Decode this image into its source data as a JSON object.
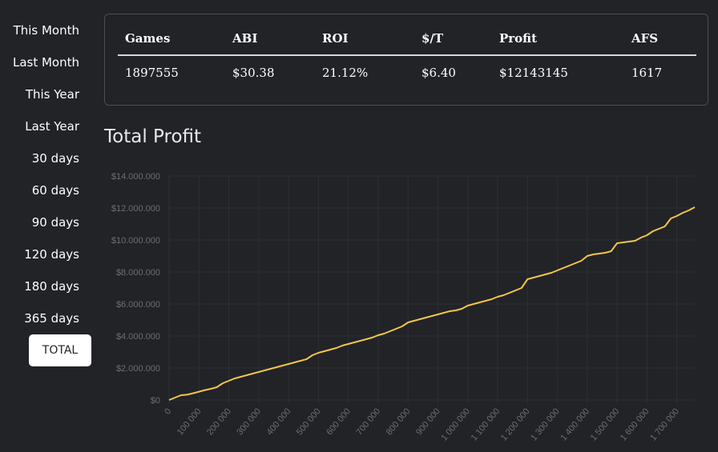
{
  "sidebar": {
    "items": [
      {
        "label": "This Month"
      },
      {
        "label": "Last Month"
      },
      {
        "label": "This Year"
      },
      {
        "label": "Last Year"
      },
      {
        "label": "30 days"
      },
      {
        "label": "60 days"
      },
      {
        "label": "90 days"
      },
      {
        "label": "120 days"
      },
      {
        "label": "180 days"
      },
      {
        "label": "365 days"
      }
    ],
    "active_label": "TOTAL"
  },
  "stats": {
    "headers": [
      "Games",
      "ABI",
      "ROI",
      "$/T",
      "Profit",
      "AFS"
    ],
    "values": [
      "1897555",
      "$30.38",
      "21.12%",
      "$6.40",
      "$12143145",
      "1617"
    ]
  },
  "chart_title": "Total Profit",
  "colors": {
    "background": "#212327",
    "line": "#f5c54a",
    "grid": "#2c2f34",
    "tick_text": "#6b6e73"
  },
  "chart_data": {
    "type": "line",
    "title": "Total Profit",
    "xlabel": "",
    "ylabel": "",
    "xlim": [
      0,
      1760000
    ],
    "ylim": [
      0,
      14000000
    ],
    "y_tick_labels": [
      "$0",
      "$2.000.000",
      "$4.000.000",
      "$6.000.000",
      "$8.000.000",
      "$10.000.000",
      "$12.000.000",
      "$14.000.000"
    ],
    "y_ticks": [
      0,
      2000000,
      4000000,
      6000000,
      8000000,
      10000000,
      12000000,
      14000000
    ],
    "x_tick_labels": [
      "0",
      "100 000",
      "200 000",
      "300 000",
      "400 000",
      "500 000",
      "600 000",
      "700 000",
      "800 000",
      "900 000",
      "1 000 000",
      "1 100 000",
      "1 200 000",
      "1 300 000",
      "1 400 000",
      "1 500 000",
      "1 600 000",
      "1 700 000"
    ],
    "x_ticks": [
      0,
      100000,
      200000,
      300000,
      400000,
      500000,
      600000,
      700000,
      800000,
      900000,
      1000000,
      1100000,
      1200000,
      1300000,
      1400000,
      1500000,
      1600000,
      1700000
    ],
    "grid": true,
    "series": [
      {
        "x": [
          0,
          20000,
          40000,
          60000,
          80000,
          100000,
          120000,
          140000,
          160000,
          180000,
          200000,
          220000,
          240000,
          260000,
          280000,
          300000,
          320000,
          340000,
          360000,
          380000,
          400000,
          420000,
          440000,
          460000,
          480000,
          500000,
          520000,
          540000,
          560000,
          580000,
          600000,
          620000,
          640000,
          660000,
          680000,
          700000,
          720000,
          740000,
          760000,
          780000,
          800000,
          820000,
          840000,
          860000,
          880000,
          900000,
          920000,
          940000,
          960000,
          980000,
          1000000,
          1020000,
          1040000,
          1060000,
          1080000,
          1100000,
          1120000,
          1140000,
          1160000,
          1180000,
          1200000,
          1220000,
          1240000,
          1260000,
          1280000,
          1300000,
          1320000,
          1340000,
          1360000,
          1380000,
          1400000,
          1420000,
          1440000,
          1460000,
          1480000,
          1500000,
          1520000,
          1540000,
          1560000,
          1580000,
          1600000,
          1620000,
          1640000,
          1660000,
          1680000,
          1700000,
          1720000,
          1740000,
          1760000
        ],
        "values": [
          0,
          150000,
          300000,
          330000,
          420000,
          520000,
          620000,
          700000,
          800000,
          1050000,
          1200000,
          1350000,
          1450000,
          1550000,
          1650000,
          1750000,
          1850000,
          1950000,
          2050000,
          2150000,
          2250000,
          2350000,
          2450000,
          2550000,
          2800000,
          2950000,
          3050000,
          3150000,
          3250000,
          3400000,
          3500000,
          3600000,
          3700000,
          3800000,
          3900000,
          4050000,
          4150000,
          4300000,
          4450000,
          4600000,
          4850000,
          4950000,
          5050000,
          5150000,
          5250000,
          5350000,
          5450000,
          5550000,
          5600000,
          5700000,
          5900000,
          6000000,
          6100000,
          6200000,
          6300000,
          6450000,
          6550000,
          6700000,
          6850000,
          7000000,
          7550000,
          7650000,
          7750000,
          7850000,
          7950000,
          8100000,
          8250000,
          8400000,
          8550000,
          8700000,
          9000000,
          9100000,
          9150000,
          9200000,
          9300000,
          9800000,
          9850000,
          9900000,
          9950000,
          10150000,
          10300000,
          10550000,
          10700000,
          10850000,
          11350000,
          11500000,
          11700000,
          11850000,
          12050000
        ]
      }
    ]
  }
}
